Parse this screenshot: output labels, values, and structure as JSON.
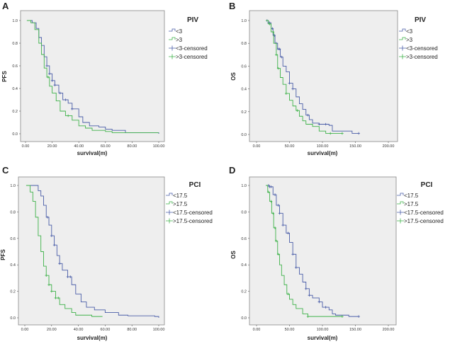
{
  "colors": {
    "series1": "#4a5da8",
    "series2": "#3fb24a",
    "plot_bg": "#eeeeee",
    "frame": "#888888"
  },
  "chart_data": [
    {
      "panel": "A",
      "type": "line",
      "subtype": "kaplan-meier step",
      "legend_title": "PIV",
      "legend": [
        "<3",
        ">3",
        "<3-censored",
        ">3-censored"
      ],
      "xlabel": "survival(m)",
      "ylabel": "PFS",
      "xlim": [
        0,
        100
      ],
      "ylim": [
        0,
        1
      ],
      "xticks": [
        "0.00",
        "20.00",
        "40.00",
        "60.00",
        "80.00",
        "100.00"
      ],
      "yticks": [
        "0.0",
        "0.2",
        "0.4",
        "0.6",
        "0.8",
        "1.0"
      ],
      "legend_position": "right",
      "grid": false,
      "series": [
        {
          "name": "<3",
          "points": [
            [
              2,
              1.0
            ],
            [
              5,
              0.98
            ],
            [
              8,
              0.93
            ],
            [
              10,
              0.85
            ],
            [
              12,
              0.78
            ],
            [
              14,
              0.68
            ],
            [
              16,
              0.6
            ],
            [
              18,
              0.53
            ],
            [
              20,
              0.47
            ],
            [
              22,
              0.43
            ],
            [
              25,
              0.36
            ],
            [
              28,
              0.3
            ],
            [
              32,
              0.27
            ],
            [
              35,
              0.22
            ],
            [
              40,
              0.15
            ],
            [
              43,
              0.1
            ],
            [
              48,
              0.07
            ],
            [
              55,
              0.06
            ],
            [
              60,
              0.04
            ],
            [
              65,
              0.03
            ],
            [
              75,
              0.01
            ],
            [
              100,
              0.0
            ]
          ],
          "censored": [
            16,
            18,
            20,
            22,
            26,
            30,
            35
          ]
        },
        {
          "name": ">3",
          "points": [
            [
              1,
              1.0
            ],
            [
              4,
              0.98
            ],
            [
              7,
              0.92
            ],
            [
              10,
              0.8
            ],
            [
              12,
              0.7
            ],
            [
              14,
              0.58
            ],
            [
              16,
              0.5
            ],
            [
              18,
              0.42
            ],
            [
              20,
              0.36
            ],
            [
              23,
              0.29
            ],
            [
              26,
              0.2
            ],
            [
              30,
              0.16
            ],
            [
              35,
              0.12
            ],
            [
              40,
              0.07
            ],
            [
              45,
              0.05
            ],
            [
              50,
              0.03
            ],
            [
              60,
              0.02
            ],
            [
              65,
              0.01
            ],
            [
              100,
              0.01
            ]
          ],
          "censored": [
            17,
            32
          ]
        }
      ]
    },
    {
      "panel": "B",
      "type": "line",
      "subtype": "kaplan-meier step",
      "legend_title": "PIV",
      "legend": [
        "<3",
        ">3",
        "<3-censored",
        ">3-censored"
      ],
      "xlabel": "survival(m)",
      "ylabel": "OS",
      "xlim": [
        0,
        200
      ],
      "ylim": [
        0,
        1
      ],
      "xticks": [
        "0.00",
        "50.00",
        "100.00",
        "150.00",
        "200.00"
      ],
      "yticks": [
        "0.0",
        "0.2",
        "0.4",
        "0.6",
        "0.8",
        "1.0"
      ],
      "legend_position": "right",
      "grid": false,
      "series": [
        {
          "name": "<3",
          "points": [
            [
              14,
              1.0
            ],
            [
              18,
              0.98
            ],
            [
              22,
              0.93
            ],
            [
              25,
              0.87
            ],
            [
              28,
              0.8
            ],
            [
              32,
              0.75
            ],
            [
              36,
              0.68
            ],
            [
              40,
              0.6
            ],
            [
              45,
              0.55
            ],
            [
              50,
              0.45
            ],
            [
              55,
              0.4
            ],
            [
              60,
              0.33
            ],
            [
              65,
              0.27
            ],
            [
              70,
              0.22
            ],
            [
              75,
              0.17
            ],
            [
              80,
              0.13
            ],
            [
              85,
              0.1
            ],
            [
              95,
              0.09
            ],
            [
              110,
              0.08
            ],
            [
              115,
              0.03
            ],
            [
              145,
              0.01
            ],
            [
              155,
              0.01
            ]
          ],
          "censored": [
            16,
            18,
            20,
            24,
            27,
            30,
            33,
            35,
            38,
            50,
            55,
            78,
            95,
            105,
            155
          ]
        },
        {
          "name": ">3",
          "points": [
            [
              14,
              1.0
            ],
            [
              18,
              0.97
            ],
            [
              22,
              0.9
            ],
            [
              26,
              0.8
            ],
            [
              30,
              0.7
            ],
            [
              32,
              0.58
            ],
            [
              36,
              0.5
            ],
            [
              40,
              0.44
            ],
            [
              45,
              0.36
            ],
            [
              50,
              0.3
            ],
            [
              55,
              0.25
            ],
            [
              60,
              0.21
            ],
            [
              65,
              0.16
            ],
            [
              70,
              0.12
            ],
            [
              75,
              0.09
            ],
            [
              85,
              0.07
            ],
            [
              95,
              0.03
            ],
            [
              105,
              0.01
            ],
            [
              130,
              0.01
            ]
          ],
          "censored": [
            20,
            25,
            30,
            33,
            45,
            62,
            112,
            130
          ]
        }
      ]
    },
    {
      "panel": "C",
      "type": "line",
      "subtype": "kaplan-meier step",
      "legend_title": "PCI",
      "legend": [
        "<17.5",
        ">17.5",
        "<17.5-censored",
        ">17.5-censored"
      ],
      "xlabel": "survival(m)",
      "ylabel": "PFS",
      "xlim": [
        0,
        100
      ],
      "ylim": [
        0,
        1
      ],
      "xticks": [
        "0.00",
        "20.00",
        "40.00",
        "60.00",
        "80.00",
        "100.00"
      ],
      "yticks": [
        "0.0",
        "0.2",
        "0.4",
        "0.6",
        "0.8",
        "1.0"
      ],
      "legend_position": "right",
      "grid": false,
      "series": [
        {
          "name": "<17.5",
          "points": [
            [
              2,
              1.0
            ],
            [
              7,
              1.0
            ],
            [
              10,
              0.96
            ],
            [
              12,
              0.92
            ],
            [
              14,
              0.85
            ],
            [
              16,
              0.76
            ],
            [
              18,
              0.7
            ],
            [
              20,
              0.62
            ],
            [
              22,
              0.55
            ],
            [
              24,
              0.47
            ],
            [
              26,
              0.41
            ],
            [
              28,
              0.36
            ],
            [
              32,
              0.31
            ],
            [
              35,
              0.25
            ],
            [
              38,
              0.18
            ],
            [
              42,
              0.12
            ],
            [
              46,
              0.08
            ],
            [
              52,
              0.06
            ],
            [
              60,
              0.04
            ],
            [
              70,
              0.02
            ],
            [
              77,
              0.015
            ],
            [
              97,
              0.01
            ],
            [
              100,
              0.0
            ]
          ],
          "censored": [
            17,
            20,
            22,
            26,
            32,
            34
          ]
        },
        {
          "name": ">17.5",
          "points": [
            [
              1,
              1.0
            ],
            [
              4,
              0.95
            ],
            [
              6,
              0.88
            ],
            [
              8,
              0.76
            ],
            [
              10,
              0.62
            ],
            [
              12,
              0.5
            ],
            [
              14,
              0.39
            ],
            [
              16,
              0.32
            ],
            [
              18,
              0.25
            ],
            [
              20,
              0.2
            ],
            [
              23,
              0.15
            ],
            [
              26,
              0.1
            ],
            [
              30,
              0.07
            ],
            [
              35,
              0.04
            ],
            [
              38,
              0.02
            ],
            [
              50,
              0.01
            ],
            [
              58,
              0.01
            ]
          ],
          "censored": [
            16,
            18,
            20,
            23,
            25
          ]
        }
      ]
    },
    {
      "panel": "D",
      "type": "line",
      "subtype": "kaplan-meier step",
      "legend_title": "PCI",
      "legend": [
        "<17.5",
        ">17.5",
        "<17.5-censored",
        ">17.5-censored"
      ],
      "xlabel": "survival(m)",
      "ylabel": "OS",
      "xlim": [
        0,
        200
      ],
      "ylim": [
        0,
        1
      ],
      "xticks": [
        "0.00",
        "50.00",
        "100.00",
        "150.00",
        "200.00"
      ],
      "yticks": [
        "0.0",
        "0.2",
        "0.4",
        "0.6",
        "0.8",
        "1.0"
      ],
      "legend_position": "right",
      "grid": false,
      "series": [
        {
          "name": "<17.5",
          "points": [
            [
              14,
              1.0
            ],
            [
              20,
              0.99
            ],
            [
              25,
              0.93
            ],
            [
              30,
              0.85
            ],
            [
              35,
              0.79
            ],
            [
              40,
              0.7
            ],
            [
              45,
              0.64
            ],
            [
              50,
              0.57
            ],
            [
              55,
              0.48
            ],
            [
              60,
              0.38
            ],
            [
              65,
              0.33
            ],
            [
              70,
              0.27
            ],
            [
              75,
              0.22
            ],
            [
              80,
              0.17
            ],
            [
              85,
              0.15
            ],
            [
              95,
              0.12
            ],
            [
              100,
              0.08
            ],
            [
              110,
              0.06
            ],
            [
              115,
              0.03
            ],
            [
              120,
              0.02
            ],
            [
              140,
              0.01
            ],
            [
              155,
              0.01
            ]
          ],
          "censored": [
            18,
            20,
            22,
            28,
            33,
            35,
            40,
            48,
            55,
            60,
            75,
            80,
            95,
            105,
            155
          ]
        },
        {
          "name": ">17.5",
          "points": [
            [
              14,
              1.0
            ],
            [
              17,
              0.95
            ],
            [
              20,
              0.88
            ],
            [
              23,
              0.79
            ],
            [
              26,
              0.68
            ],
            [
              29,
              0.58
            ],
            [
              32,
              0.48
            ],
            [
              35,
              0.4
            ],
            [
              38,
              0.32
            ],
            [
              42,
              0.25
            ],
            [
              46,
              0.18
            ],
            [
              50,
              0.14
            ],
            [
              55,
              0.1
            ],
            [
              60,
              0.07
            ],
            [
              70,
              0.03
            ],
            [
              78,
              0.01
            ],
            [
              130,
              0.01
            ]
          ],
          "censored": [
            18,
            22,
            25,
            28,
            30,
            33,
            48,
            78,
            130
          ]
        }
      ]
    }
  ]
}
